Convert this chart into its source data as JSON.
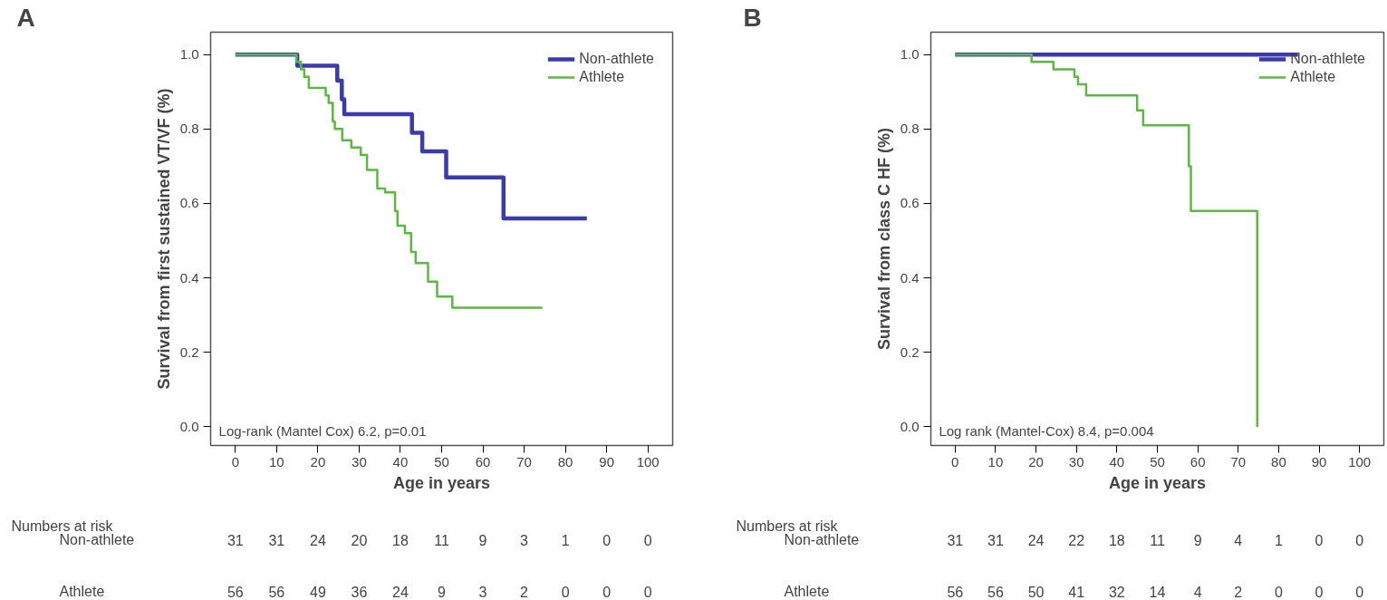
{
  "chart_data": [
    {
      "type": "step",
      "title": "A",
      "xlabel": "Age in years",
      "ylabel": "Survival from first sustained VT/VF (%)",
      "xlim": [
        -6,
        106
      ],
      "xticks": [
        0,
        10,
        20,
        30,
        40,
        50,
        60,
        70,
        80,
        90,
        100
      ],
      "ylim": [
        -0.05,
        1.06
      ],
      "yticks": [
        {
          "value": 0,
          "label": "0.0"
        },
        {
          "value": 0.2,
          "label": "0.2"
        },
        {
          "value": 0.4,
          "label": "0.4"
        },
        {
          "value": 0.6,
          "label": "0.6"
        },
        {
          "value": 0.8,
          "label": "0.8"
        },
        {
          "value": 1,
          "label": "1.0"
        }
      ],
      "legend": "top right",
      "series": [
        {
          "name": "Non-athlete",
          "color": "#3b3bab",
          "x": [
            0,
            15,
            24.7,
            25.8,
            26.4,
            42.8,
            45.3,
            51.1,
            65,
            85.2
          ],
          "values": [
            1.0,
            0.97,
            0.93,
            0.88,
            0.84,
            0.79,
            0.74,
            0.67,
            0.56,
            0.56
          ]
        },
        {
          "name": "Athlete",
          "color": "#5cb843",
          "x": [
            0,
            14.8,
            15.9,
            16.7,
            17.8,
            21.9,
            22.6,
            23.6,
            24.1,
            25.9,
            28.1,
            30.4,
            31.9,
            34.4,
            36.3,
            38.7,
            39.3,
            41.1,
            42.6,
            43.7,
            46.7,
            48.9,
            52.6,
            74.4
          ],
          "values": [
            1.0,
            0.98,
            0.96,
            0.94,
            0.91,
            0.89,
            0.87,
            0.82,
            0.8,
            0.77,
            0.75,
            0.73,
            0.69,
            0.64,
            0.63,
            0.58,
            0.54,
            0.52,
            0.47,
            0.44,
            0.39,
            0.35,
            0.32,
            0.32
          ]
        }
      ],
      "annotations": [
        "Log-rank (Mantel Cox) 6.2, p=0.01",
        "Numbers at risk",
        "Non-athlete",
        "31 31 24 20 18 11 9 3 1 0 0",
        "Athlete",
        "56 56 49 36 24 9 3 2 0 0 0"
      ]
    },
    {
      "type": "step",
      "title": "B",
      "xlabel": "Age in years",
      "ylabel": "Survival from class C HF (%)",
      "xlim": [
        -6,
        106
      ],
      "xticks": [
        0,
        10,
        20,
        30,
        40,
        50,
        60,
        70,
        80,
        90,
        100
      ],
      "ylim": [
        -0.05,
        1.06
      ],
      "yticks": [
        {
          "value": 0,
          "label": "0.0"
        },
        {
          "value": 0.2,
          "label": "0.2"
        },
        {
          "value": 0.4,
          "label": "0.4"
        },
        {
          "value": 0.6,
          "label": "0.6"
        },
        {
          "value": 0.8,
          "label": "0.8"
        },
        {
          "value": 1,
          "label": "1.0"
        }
      ],
      "legend": "top right",
      "series": [
        {
          "name": "Non-athlete",
          "color": "#3b3bab",
          "x": [
            0,
            84.8
          ],
          "values": [
            1.0,
            1.0
          ]
        },
        {
          "name": "Athlete",
          "color": "#5cb843",
          "x": [
            0,
            18.9,
            24.3,
            29.5,
            30.4,
            32.4,
            45.0,
            46.5,
            57.8,
            58.3,
            74.7
          ],
          "values": [
            1.0,
            0.98,
            0.96,
            0.94,
            0.92,
            0.89,
            0.85,
            0.81,
            0.7,
            0.58,
            0.0
          ]
        }
      ],
      "annotations": [
        "Log rank (Mantel-Cox) 8.4, p=0.004",
        "Numbers at risk",
        "Non-athlete",
        "31 31 24 22 18 11 9 4 1 0 0",
        "Athlete",
        "56 56 50 41 32 14 4 2 0 0 0"
      ]
    }
  ]
}
